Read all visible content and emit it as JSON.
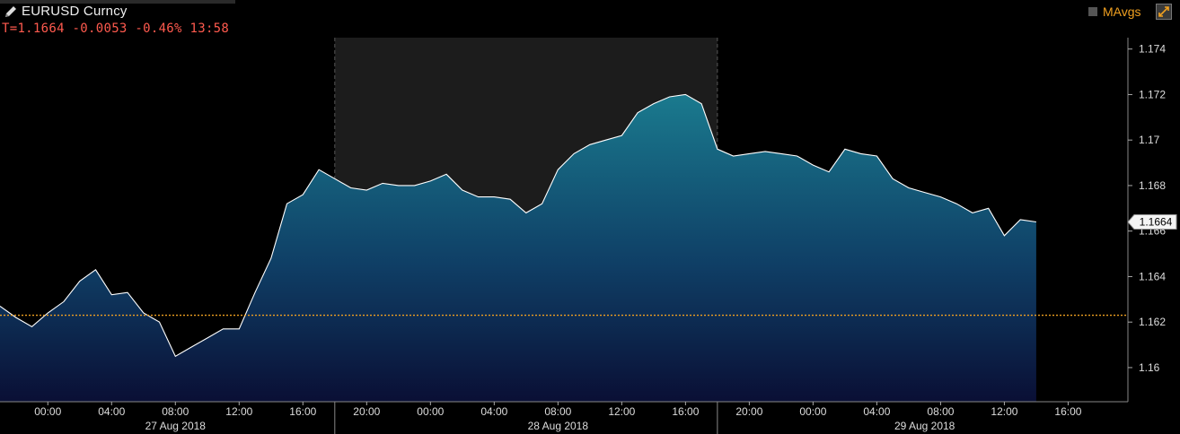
{
  "header": {
    "ticker": "EURUSD Curncy",
    "quote": "T=1.1664 -0.0053 -0.46% 13:58",
    "mavgs_label": "MAvgs",
    "colors": {
      "ticker": "#f0f0f0",
      "quote": "#ff5a4e",
      "mavgs": "#f0a020"
    },
    "icons": [
      "pencil-icon",
      "expand-icon"
    ]
  },
  "chart_data": {
    "type": "area",
    "title": "",
    "xlabel": "",
    "ylabel": "",
    "ylim": [
      1.1585,
      1.1745
    ],
    "xlim": [
      "2018-08-26T21:00",
      "2018-08-29T19:45"
    ],
    "y_ticks": [
      "1.16",
      "1.162",
      "1.164",
      "1.166",
      "1.168",
      "1.17",
      "1.172",
      "1.174"
    ],
    "x_ticks": [
      "00:00",
      "04:00",
      "08:00",
      "12:00",
      "16:00",
      "20:00",
      "00:00",
      "04:00",
      "08:00",
      "12:00",
      "16:00",
      "20:00",
      "00:00",
      "04:00",
      "08:00",
      "12:00",
      "16:00"
    ],
    "date_labels": [
      "27 Aug 2018",
      "28 Aug 2018",
      "29 Aug 2018"
    ],
    "last_price_label": "1.1664",
    "reference_line": {
      "value": 1.1623,
      "color": "#f0a020",
      "style": "dotted"
    },
    "shaded_session": {
      "from": "2018-08-27T18:00",
      "to": "2018-08-28T18:00"
    },
    "grid": false,
    "line_color": "#ffffff",
    "area_top_color": "#1a7a8e",
    "area_bottom_color": "#0a0f35",
    "series": [
      {
        "x": [
          "2018-08-26T21:00",
          "2018-08-26T22:00",
          "2018-08-26T23:00",
          "2018-08-27T00:00",
          "2018-08-27T01:00",
          "2018-08-27T02:00",
          "2018-08-27T03:00",
          "2018-08-27T04:00",
          "2018-08-27T05:00",
          "2018-08-27T06:00",
          "2018-08-27T07:00",
          "2018-08-27T08:00",
          "2018-08-27T09:00",
          "2018-08-27T10:00",
          "2018-08-27T11:00",
          "2018-08-27T12:00",
          "2018-08-27T13:00",
          "2018-08-27T14:00",
          "2018-08-27T15:00",
          "2018-08-27T16:00",
          "2018-08-27T17:00",
          "2018-08-27T18:00",
          "2018-08-27T19:00",
          "2018-08-27T20:00",
          "2018-08-27T21:00",
          "2018-08-27T22:00",
          "2018-08-27T23:00",
          "2018-08-28T00:00",
          "2018-08-28T01:00",
          "2018-08-28T02:00",
          "2018-08-28T03:00",
          "2018-08-28T04:00",
          "2018-08-28T05:00",
          "2018-08-28T06:00",
          "2018-08-28T07:00",
          "2018-08-28T08:00",
          "2018-08-28T09:00",
          "2018-08-28T10:00",
          "2018-08-28T11:00",
          "2018-08-28T12:00",
          "2018-08-28T13:00",
          "2018-08-28T14:00",
          "2018-08-28T15:00",
          "2018-08-28T16:00",
          "2018-08-28T17:00",
          "2018-08-28T18:00",
          "2018-08-28T19:00",
          "2018-08-28T20:00",
          "2018-08-28T21:00",
          "2018-08-28T22:00",
          "2018-08-28T23:00",
          "2018-08-29T00:00",
          "2018-08-29T01:00",
          "2018-08-29T02:00",
          "2018-08-29T03:00",
          "2018-08-29T04:00",
          "2018-08-29T05:00",
          "2018-08-29T06:00",
          "2018-08-29T07:00",
          "2018-08-29T08:00",
          "2018-08-29T09:00",
          "2018-08-29T10:00",
          "2018-08-29T11:00",
          "2018-08-29T12:00",
          "2018-08-29T13:00",
          "2018-08-29T14:00"
        ],
        "values": [
          1.1627,
          1.1622,
          1.1618,
          1.1624,
          1.1629,
          1.1638,
          1.1643,
          1.1632,
          1.1633,
          1.1624,
          1.162,
          1.1605,
          1.1609,
          1.1613,
          1.1617,
          1.1617,
          1.1633,
          1.1648,
          1.1672,
          1.1676,
          1.1687,
          1.1683,
          1.1679,
          1.1678,
          1.1681,
          1.168,
          1.168,
          1.1682,
          1.1685,
          1.1678,
          1.1675,
          1.1675,
          1.1674,
          1.1668,
          1.1672,
          1.1687,
          1.1694,
          1.1698,
          1.17,
          1.1702,
          1.1712,
          1.1716,
          1.1719,
          1.172,
          1.1716,
          1.1696,
          1.1693,
          1.1694,
          1.1695,
          1.1694,
          1.1693,
          1.1689,
          1.1686,
          1.1696,
          1.1694,
          1.1693,
          1.1683,
          1.1679,
          1.1677,
          1.1675,
          1.1672,
          1.1668,
          1.167,
          1.1658,
          1.1665,
          1.1664
        ]
      }
    ]
  }
}
